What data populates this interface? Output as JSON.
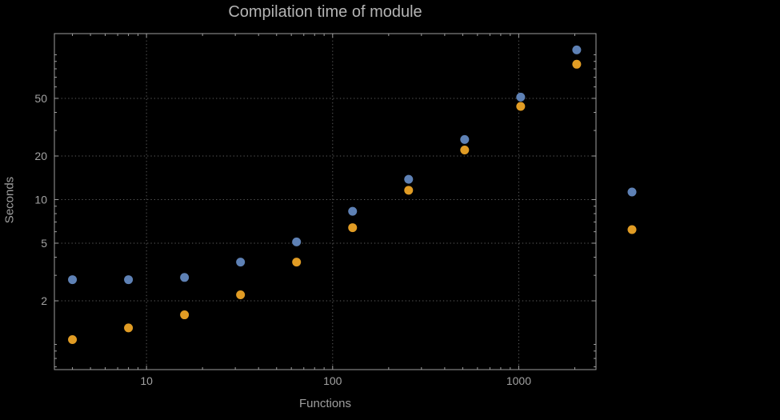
{
  "title": "Compilation time of module",
  "chart_data": {
    "type": "scatter",
    "title": "Compilation time of module",
    "xlabel": "Functions",
    "ylabel": "Seconds",
    "xscale": "log",
    "yscale": "log",
    "xlim": [
      3.2,
      2600
    ],
    "ylim": [
      0.67,
      140
    ],
    "xticks": [
      10,
      100,
      1000
    ],
    "yticks": [
      2,
      5,
      10,
      20,
      50
    ],
    "grid": true,
    "grid_style": "dotted",
    "legend_position": "right-outside",
    "series": [
      {
        "name": "series-blue",
        "color": "#5e81b5",
        "x": [
          4,
          8,
          16,
          32,
          64,
          128,
          256,
          512,
          1024,
          2048
        ],
        "y": [
          2.8,
          2.8,
          2.9,
          3.7,
          5.1,
          8.3,
          13.8,
          26,
          51,
          108
        ]
      },
      {
        "name": "series-orange",
        "color": "#e19c24",
        "x": [
          4,
          8,
          16,
          32,
          64,
          128,
          256,
          512,
          1024,
          2048
        ],
        "y": [
          1.08,
          1.3,
          1.6,
          2.2,
          3.7,
          6.4,
          11.6,
          22,
          44,
          86
        ]
      }
    ],
    "legend_markers": [
      {
        "name": "legend-marker-blue",
        "color": "#5e81b5"
      },
      {
        "name": "legend-marker-orange",
        "color": "#e19c24"
      }
    ]
  },
  "style_colors": {
    "background": "#000000",
    "frame": "#9e9e9e",
    "grid": "#5c5c5c",
    "text": "#a2a2a2"
  }
}
